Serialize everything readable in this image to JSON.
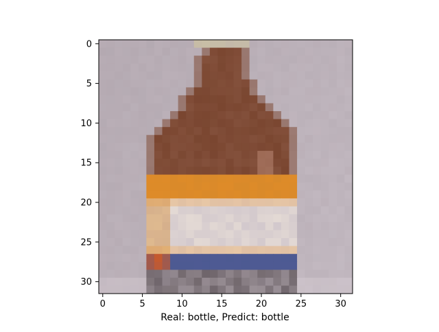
{
  "figure": {
    "caption": "Real: bottle, Predict: bottle",
    "image_subject": "low-resolution 32x32 photo of a brown glass bottle with an orange, white and blue label against a pale grey-lavender background",
    "x_ticks": [
      "0",
      "5",
      "10",
      "15",
      "20",
      "25",
      "30"
    ],
    "y_ticks": [
      "0",
      "5",
      "10",
      "15",
      "20",
      "25",
      "30"
    ],
    "colors": {
      "background": "#b7acb4",
      "bottle_brown": "#7a4630",
      "label_orange": "#d98a2a",
      "label_white": "#e3d9d4",
      "label_blue": "#4d5a92",
      "cap": "#c9bfa4"
    }
  }
}
